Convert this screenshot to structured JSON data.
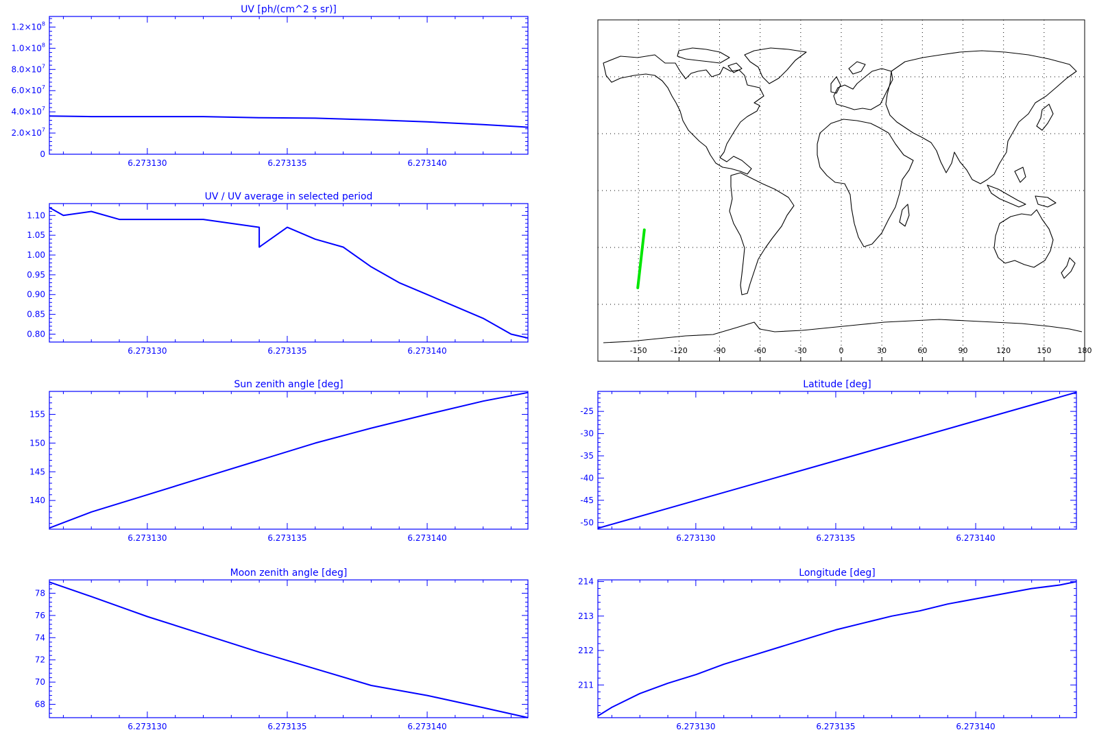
{
  "colors": {
    "plot": "#0000ff",
    "map_lines": "#000000",
    "track": "#00e600",
    "grid": "#000000",
    "background": "#ffffff"
  },
  "chart_data": [
    {
      "id": "uv",
      "type": "line",
      "title": "UV [ph/(cm^2 s sr)]",
      "xlabel": "",
      "ylabel": "",
      "xlim": [
        6.2731265,
        6.2731436
      ],
      "ylim": [
        0,
        130000000.0
      ],
      "x_ticks": [
        6.27313,
        6.273135,
        6.27314
      ],
      "x_tick_labels": [
        "6.273130",
        "6.273135",
        "6.273140"
      ],
      "y_ticks": [
        0,
        20000000.0,
        40000000.0,
        60000000.0,
        80000000.0,
        100000000.0,
        120000000.0
      ],
      "y_tick_labels": [
        {
          "mant": "0",
          "exp": ""
        },
        {
          "mant": "2.0×10",
          "exp": "7"
        },
        {
          "mant": "4.0×10",
          "exp": "7"
        },
        {
          "mant": "6.0×10",
          "exp": "7"
        },
        {
          "mant": "8.0×10",
          "exp": "7"
        },
        {
          "mant": "1.0×10",
          "exp": "8"
        },
        {
          "mant": "1.2×10",
          "exp": "8"
        }
      ],
      "x": [
        6.2731265,
        6.273128,
        6.27313,
        6.273132,
        6.273134,
        6.273136,
        6.273138,
        6.27314,
        6.273142,
        6.2731436
      ],
      "y": [
        36000000.0,
        35500000.0,
        35500000.0,
        35500000.0,
        34500000.0,
        34000000.0,
        32500000.0,
        30500000.0,
        28000000.0,
        25500000.0
      ]
    },
    {
      "id": "uv-ratio",
      "type": "line",
      "title": "UV / UV average in selected period",
      "xlabel": "",
      "ylabel": "",
      "xlim": [
        6.2731265,
        6.2731436
      ],
      "ylim": [
        0.78,
        1.13
      ],
      "x_ticks": [
        6.27313,
        6.273135,
        6.27314
      ],
      "x_tick_labels": [
        "6.273130",
        "6.273135",
        "6.273140"
      ],
      "y_ticks": [
        0.8,
        0.85,
        0.9,
        0.95,
        1.0,
        1.05,
        1.1
      ],
      "y_tick_labels": [
        "0.80",
        "0.85",
        "0.90",
        "0.95",
        "1.00",
        "1.05",
        "1.10"
      ],
      "x": [
        6.2731265,
        6.273127,
        6.273128,
        6.273129,
        6.27313,
        6.273131,
        6.273132,
        6.273133,
        6.273134,
        6.273134,
        6.273135,
        6.273136,
        6.273137,
        6.273138,
        6.273139,
        6.27314,
        6.273141,
        6.273142,
        6.273143,
        6.2731436
      ],
      "y": [
        1.12,
        1.1,
        1.11,
        1.09,
        1.09,
        1.09,
        1.09,
        1.08,
        1.07,
        1.02,
        1.07,
        1.04,
        1.02,
        0.97,
        0.93,
        0.9,
        0.87,
        0.84,
        0.8,
        0.79
      ]
    },
    {
      "id": "sun-zenith",
      "type": "line",
      "title": "Sun zenith angle [deg]",
      "xlabel": "",
      "ylabel": "",
      "xlim": [
        6.2731265,
        6.2731436
      ],
      "ylim": [
        135,
        159
      ],
      "x_ticks": [
        6.27313,
        6.273135,
        6.27314
      ],
      "x_tick_labels": [
        "6.273130",
        "6.273135",
        "6.273140"
      ],
      "y_ticks": [
        140,
        145,
        150,
        155
      ],
      "y_tick_labels": [
        "140",
        "145",
        "150",
        "155"
      ],
      "x": [
        6.2731265,
        6.273128,
        6.27313,
        6.273132,
        6.273134,
        6.273136,
        6.273138,
        6.27314,
        6.273142,
        6.2731436
      ],
      "y": [
        135.2,
        138.0,
        141.0,
        144.0,
        147.0,
        150.0,
        152.6,
        155.0,
        157.3,
        158.8
      ]
    },
    {
      "id": "moon-zenith",
      "type": "line",
      "title": "Moon zenith angle [deg]",
      "xlabel": "",
      "ylabel": "",
      "xlim": [
        6.2731265,
        6.2731436
      ],
      "ylim": [
        66.8,
        79.2
      ],
      "x_ticks": [
        6.27313,
        6.273135,
        6.27314
      ],
      "x_tick_labels": [
        "6.273130",
        "6.273135",
        "6.273140"
      ],
      "y_ticks": [
        68,
        70,
        72,
        74,
        76,
        78
      ],
      "y_tick_labels": [
        "68",
        "70",
        "72",
        "74",
        "76",
        "78"
      ],
      "x": [
        6.2731265,
        6.273128,
        6.27313,
        6.273132,
        6.273134,
        6.273136,
        6.273138,
        6.27314,
        6.273142,
        6.2731436
      ],
      "y": [
        79.0,
        77.7,
        75.9,
        74.3,
        72.7,
        71.2,
        69.7,
        68.8,
        67.7,
        66.8
      ]
    },
    {
      "id": "latitude",
      "type": "line",
      "title": "Latitude [deg]",
      "xlabel": "",
      "ylabel": "",
      "xlim": [
        6.2731265,
        6.2731436
      ],
      "ylim": [
        -51.5,
        -20.5
      ],
      "x_ticks": [
        6.27313,
        6.273135,
        6.27314
      ],
      "x_tick_labels": [
        "6.273130",
        "6.273135",
        "6.273140"
      ],
      "y_ticks": [
        -50,
        -45,
        -40,
        -35,
        -30,
        -25
      ],
      "y_tick_labels": [
        "-50",
        "-45",
        "-40",
        "-35",
        "-30",
        "-25"
      ],
      "x": [
        6.2731265,
        6.2731436
      ],
      "y": [
        -51.3,
        -20.7
      ]
    },
    {
      "id": "longitude",
      "type": "line",
      "title": "Longitude [deg]",
      "xlabel": "",
      "ylabel": "",
      "xlim": [
        6.2731265,
        6.2731436
      ],
      "ylim": [
        210.05,
        214.05
      ],
      "x_ticks": [
        6.27313,
        6.273135,
        6.27314
      ],
      "x_tick_labels": [
        "6.273130",
        "6.273135",
        "6.273140"
      ],
      "y_ticks": [
        211,
        212,
        213,
        214
      ],
      "y_tick_labels": [
        "211",
        "212",
        "213",
        "214"
      ],
      "x": [
        6.2731265,
        6.273127,
        6.273128,
        6.273129,
        6.27313,
        6.273131,
        6.273132,
        6.273133,
        6.273134,
        6.273135,
        6.273136,
        6.273137,
        6.273138,
        6.273139,
        6.27314,
        6.273141,
        6.273142,
        6.273143,
        6.2731436
      ],
      "y": [
        210.1,
        210.35,
        210.75,
        211.05,
        211.3,
        211.6,
        211.85,
        212.1,
        212.35,
        212.6,
        212.8,
        213.0,
        213.15,
        213.35,
        213.5,
        213.65,
        213.8,
        213.9,
        214.0
      ]
    }
  ],
  "map": {
    "x_ticks": [
      -150,
      -120,
      -90,
      -60,
      -30,
      0,
      30,
      60,
      90,
      120,
      150,
      180
    ],
    "x_tick_labels": [
      "-150",
      "-120",
      "-90",
      "-60",
      "-30",
      "0",
      "30",
      "60",
      "90",
      "120",
      "150",
      "180"
    ],
    "lon_range": [
      -180,
      180
    ],
    "lat_range": [
      -90,
      90
    ],
    "grid_lat": [
      -60,
      -30,
      0,
      30,
      60
    ],
    "track": {
      "lon": [
        [
          -150.5,
          -146.2
        ],
        [
          -148.2,
          -145.6
        ]
      ],
      "lat": [
        -51.3,
        -20.7
      ]
    }
  }
}
